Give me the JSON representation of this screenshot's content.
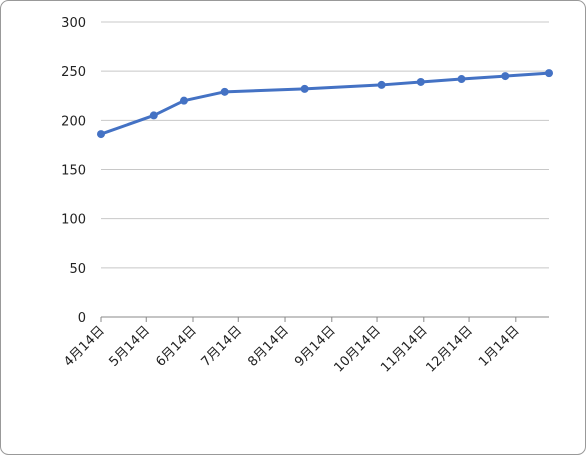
{
  "chart_data": {
    "type": "line",
    "x": [
      "4月14日",
      "5月19日",
      "6月8日",
      "7月5日",
      "8月27日",
      "10月17日",
      "11月12日",
      "12月9日",
      "1月7日",
      "2月5日"
    ],
    "series": [
      {
        "color": "#4472c4",
        "values": [
          186,
          205,
          220,
          229,
          232,
          236,
          239,
          242,
          245,
          248
        ]
      }
    ],
    "xlim": [
      "4月14日",
      "2月5日"
    ],
    "xticks": [
      "4月14日",
      "5月14日",
      "6月14日",
      "7月14日",
      "8月14日",
      "9月14日",
      "10月14日",
      "11月14日",
      "12月14日",
      "1月14日"
    ],
    "ylim": [
      0,
      300
    ],
    "yticks": [
      0,
      50,
      100,
      150,
      200,
      250,
      300
    ],
    "grid": true
  }
}
